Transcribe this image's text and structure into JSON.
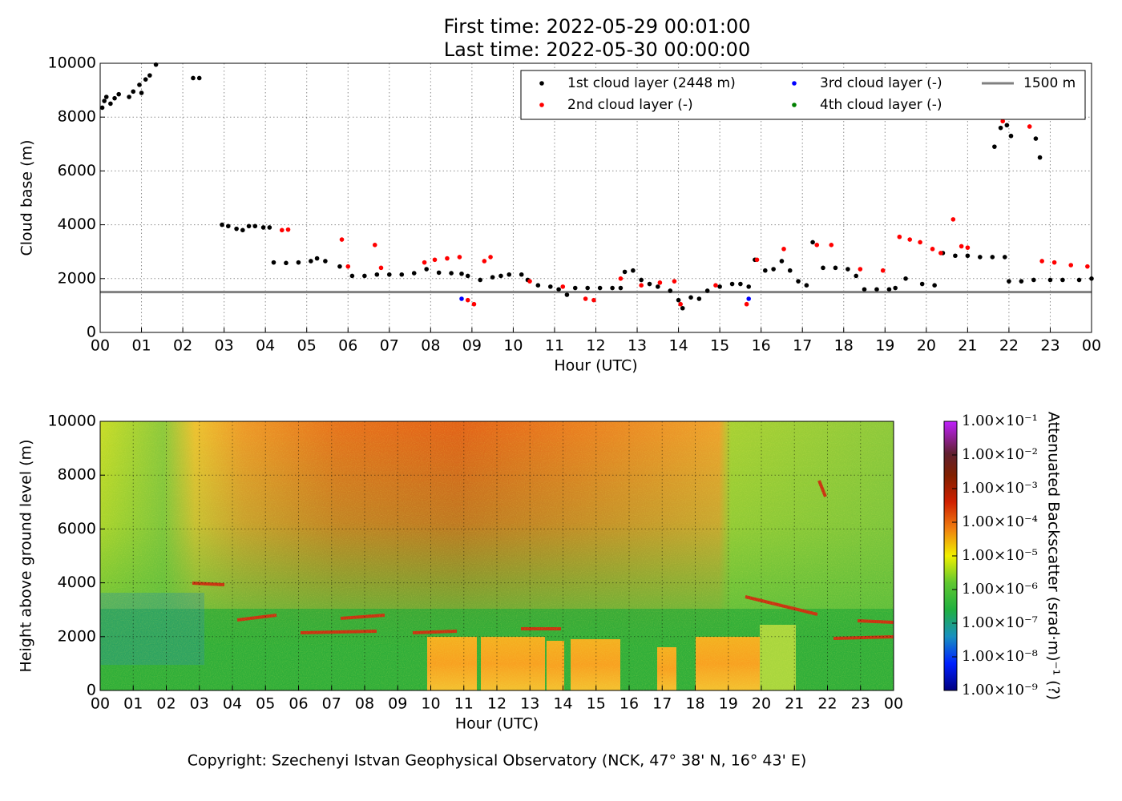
{
  "chart_data": [
    {
      "type": "scatter",
      "title": "First time: 2022-05-29 00:01:00",
      "subtitle": "Last time: 2022-05-30 00:00:00",
      "x_label": "Hour (UTC)",
      "y_label": "Cloud base (m)",
      "xlim": [
        0,
        24
      ],
      "ylim": [
        0,
        10000
      ],
      "xticks": [
        {
          "value": 0,
          "label": "00"
        },
        {
          "value": 1,
          "label": "01"
        },
        {
          "value": 2,
          "label": "02"
        },
        {
          "value": 3,
          "label": "03"
        },
        {
          "value": 4,
          "label": "04"
        },
        {
          "value": 5,
          "label": "05"
        },
        {
          "value": 6,
          "label": "06"
        },
        {
          "value": 7,
          "label": "07"
        },
        {
          "value": 8,
          "label": "08"
        },
        {
          "value": 9,
          "label": "09"
        },
        {
          "value": 10,
          "label": "10"
        },
        {
          "value": 11,
          "label": "11"
        },
        {
          "value": 12,
          "label": "12"
        },
        {
          "value": 13,
          "label": "13"
        },
        {
          "value": 14,
          "label": "14"
        },
        {
          "value": 15,
          "label": "15"
        },
        {
          "value": 16,
          "label": "16"
        },
        {
          "value": 17,
          "label": "17"
        },
        {
          "value": 18,
          "label": "18"
        },
        {
          "value": 19,
          "label": "19"
        },
        {
          "value": 20,
          "label": "20"
        },
        {
          "value": 21,
          "label": "21"
        },
        {
          "value": 22,
          "label": "22"
        },
        {
          "value": 23,
          "label": "23"
        },
        {
          "value": 24,
          "label": "00"
        }
      ],
      "yticks": [
        0,
        2000,
        4000,
        6000,
        8000,
        10000
      ],
      "grid": true,
      "series": [
        {
          "name": "1st cloud layer (2448 m)",
          "color": "#000000",
          "x": [
            0.05,
            0.1,
            0.15,
            0.25,
            0.35,
            0.45,
            0.7,
            0.8,
            0.95,
            1.0,
            1.1,
            1.2,
            1.35,
            2.25,
            2.4,
            2.95,
            3.1,
            3.3,
            3.45,
            3.6,
            3.75,
            3.95,
            4.1,
            4.2,
            4.5,
            4.8,
            5.1,
            5.25,
            5.45,
            5.8,
            6.1,
            6.4,
            6.7,
            7.0,
            7.3,
            7.6,
            7.9,
            8.2,
            8.5,
            8.75,
            8.9,
            9.2,
            9.5,
            9.7,
            9.9,
            10.2,
            10.35,
            10.6,
            10.9,
            11.1,
            11.3,
            11.5,
            11.8,
            12.1,
            12.4,
            12.6,
            12.7,
            12.9,
            13.1,
            13.3,
            13.5,
            13.8,
            14.0,
            14.1,
            14.3,
            14.5,
            14.7,
            15.0,
            15.3,
            15.5,
            15.7,
            15.85,
            16.1,
            16.3,
            16.5,
            16.7,
            16.9,
            17.1,
            17.25,
            17.5,
            17.8,
            18.1,
            18.3,
            18.5,
            18.8,
            19.1,
            19.25,
            19.5,
            19.9,
            20.2,
            20.4,
            20.7,
            21.0,
            21.3,
            21.6,
            21.9,
            21.8,
            21.65,
            21.95,
            22.05,
            22.0,
            22.3,
            22.6,
            22.65,
            22.75,
            23.0,
            23.3,
            23.7,
            24.0
          ],
          "values": [
            8350,
            8600,
            8750,
            8500,
            8700,
            8850,
            8750,
            8950,
            9200,
            8900,
            9400,
            9550,
            9950,
            9450,
            9450,
            4000,
            3950,
            3850,
            3800,
            3950,
            3950,
            3900,
            3900,
            2600,
            2580,
            2600,
            2650,
            2750,
            2650,
            2450,
            2100,
            2100,
            2150,
            2150,
            2150,
            2200,
            2350,
            2220,
            2200,
            2180,
            2100,
            1950,
            2050,
            2100,
            2150,
            2150,
            1950,
            1750,
            1700,
            1600,
            1400,
            1650,
            1650,
            1650,
            1650,
            1650,
            2250,
            2300,
            1950,
            1800,
            1700,
            1550,
            1200,
            900,
            1300,
            1250,
            1550,
            1700,
            1800,
            1800,
            1700,
            2700,
            2300,
            2350,
            2650,
            2300,
            1900,
            1750,
            3350,
            2400,
            2400,
            2350,
            2100,
            1600,
            1600,
            1600,
            1650,
            2000,
            1800,
            1750,
            2950,
            2850,
            2850,
            2800,
            2800,
            2800,
            7600,
            6900,
            7700,
            7300,
            1900,
            1900,
            1950,
            7200,
            6500,
            1950,
            1950,
            1950,
            2000
          ]
        },
        {
          "name": "2nd cloud layer (-)",
          "color": "#ff0000",
          "x": [
            4.4,
            4.55,
            5.85,
            6.0,
            6.65,
            6.8,
            7.85,
            8.1,
            8.4,
            8.7,
            8.9,
            9.05,
            9.3,
            9.45,
            10.4,
            11.2,
            11.75,
            11.95,
            12.6,
            13.1,
            13.55,
            13.9,
            14.05,
            14.9,
            15.65,
            15.9,
            16.55,
            17.35,
            17.7,
            18.4,
            18.95,
            19.35,
            19.6,
            19.85,
            20.15,
            20.35,
            20.65,
            20.85,
            21.0,
            21.85,
            22.5,
            22.8,
            23.1,
            23.5,
            23.9
          ],
          "values": [
            3800,
            3820,
            3450,
            2450,
            3250,
            2400,
            2600,
            2700,
            2750,
            2800,
            1200,
            1050,
            2650,
            2800,
            1900,
            1700,
            1250,
            1200,
            2000,
            1750,
            1850,
            1900,
            1050,
            1750,
            1050,
            2700,
            3100,
            3250,
            3250,
            2350,
            2300,
            3550,
            3450,
            3350,
            3100,
            2950,
            4200,
            3200,
            3150,
            7850,
            7650,
            2650,
            2600,
            2500,
            2450
          ]
        },
        {
          "name": "3rd cloud layer (-)",
          "color": "#0000ff",
          "x": [
            8.75,
            15.7
          ],
          "values": [
            1250,
            1250
          ]
        },
        {
          "name": "4th cloud layer (-)",
          "color": "#008000",
          "x": [],
          "values": []
        }
      ],
      "reference_line": {
        "name": "1500 m",
        "value": 1500,
        "color": "#808080"
      }
    },
    {
      "type": "heatmap",
      "x_label": "Hour (UTC)",
      "y_label": "Height above ground level (m)",
      "xlim": [
        0,
        24
      ],
      "ylim": [
        0,
        10000
      ],
      "xticks": [
        {
          "value": 0,
          "label": "00"
        },
        {
          "value": 1,
          "label": "01"
        },
        {
          "value": 2,
          "label": "02"
        },
        {
          "value": 3,
          "label": "03"
        },
        {
          "value": 4,
          "label": "04"
        },
        {
          "value": 5,
          "label": "05"
        },
        {
          "value": 6,
          "label": "06"
        },
        {
          "value": 7,
          "label": "07"
        },
        {
          "value": 8,
          "label": "08"
        },
        {
          "value": 9,
          "label": "09"
        },
        {
          "value": 10,
          "label": "10"
        },
        {
          "value": 11,
          "label": "11"
        },
        {
          "value": 12,
          "label": "12"
        },
        {
          "value": 13,
          "label": "13"
        },
        {
          "value": 14,
          "label": "14"
        },
        {
          "value": 15,
          "label": "15"
        },
        {
          "value": 16,
          "label": "16"
        },
        {
          "value": 17,
          "label": "17"
        },
        {
          "value": 18,
          "label": "18"
        },
        {
          "value": 19,
          "label": "19"
        },
        {
          "value": 20,
          "label": "20"
        },
        {
          "value": 21,
          "label": "21"
        },
        {
          "value": 22,
          "label": "22"
        },
        {
          "value": 23,
          "label": "23"
        },
        {
          "value": 24,
          "label": "00"
        }
      ],
      "yticks": [
        0,
        2000,
        4000,
        6000,
        8000,
        10000
      ],
      "grid": true,
      "colorbar": {
        "label": "Attenuated Backscatter (srad·m)⁻¹ (?)",
        "log": true,
        "lim": [
          1e-09,
          0.1
        ],
        "ticks": [
          {
            "value": 1e-09,
            "label": "1.00×10⁻⁹"
          },
          {
            "value": 1e-08,
            "label": "1.00×10⁻⁸"
          },
          {
            "value": 1e-07,
            "label": "1.00×10⁻⁷"
          },
          {
            "value": 1e-06,
            "label": "1.00×10⁻⁶"
          },
          {
            "value": 1e-05,
            "label": "1.00×10⁻⁵"
          },
          {
            "value": 0.0001,
            "label": "1.00×10⁻⁴"
          },
          {
            "value": 0.001,
            "label": "1.00×10⁻³"
          },
          {
            "value": 0.01,
            "label": "1.00×10⁻²"
          },
          {
            "value": 0.1,
            "label": "1.00×10⁻¹"
          }
        ]
      }
    }
  ],
  "footer": "Copyright: Szechenyi Istvan Geophysical Observatory (NCK, 47° 38' N, 16° 43' E)"
}
